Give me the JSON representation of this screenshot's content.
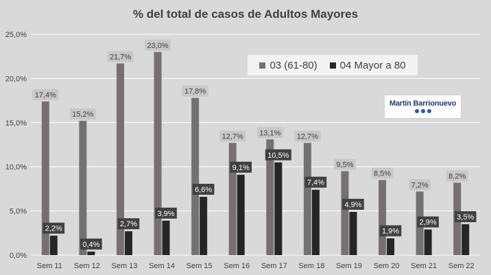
{
  "chart_data": {
    "type": "bar",
    "title": "% del total de casos de Adultos Mayores",
    "categories": [
      "Sem 11",
      "Sem 12",
      "Sem 13",
      "Sem 14",
      "Sem 15",
      "Sem 16",
      "Sem 17",
      "Sem 18",
      "Sem 19",
      "Sem 20",
      "Sem 21",
      "Sem 22"
    ],
    "series": [
      {
        "name": "03 (61-80)",
        "color": "#767171",
        "values": [
          17.4,
          15.2,
          21.7,
          23.0,
          17.8,
          12.7,
          13.1,
          12.7,
          9.5,
          8.5,
          7.2,
          8.2
        ],
        "labels": [
          "17,4%",
          "15,2%",
          "21,7%",
          "23,0%",
          "17,8%",
          "12,7%",
          "13,1%",
          "12,7%",
          "9,5%",
          "8,5%",
          "7,2%",
          "8,2%"
        ]
      },
      {
        "name": "04 Mayor a 80",
        "color": "#262626",
        "values": [
          2.2,
          0.4,
          2.7,
          3.9,
          6.6,
          9.1,
          10.5,
          7.4,
          4.9,
          1.9,
          2.9,
          3.5
        ],
        "labels": [
          "2,2%",
          "0,4%",
          "2,7%",
          "3,9%",
          "6,6%",
          "9,1%",
          "10,5%",
          "7,4%",
          "4,9%",
          "1,9%",
          "2,9%",
          "3,5%"
        ]
      }
    ],
    "yticks": [
      0,
      5,
      10,
      15,
      20,
      25
    ],
    "ytick_labels": [
      "0,0%",
      "5,0%",
      "10,0%",
      "15,0%",
      "20,0%",
      "25,0%"
    ],
    "ylim": [
      0,
      25
    ],
    "grid": true,
    "legend_position": "top-right"
  },
  "logo": {
    "name": "Martín Barrionuevo"
  },
  "colors": {
    "background": "#d9d9d9",
    "gridline": "#ffffff",
    "series1_label_bg": "#c8c8c8",
    "series2_label_bg": "#404040"
  }
}
